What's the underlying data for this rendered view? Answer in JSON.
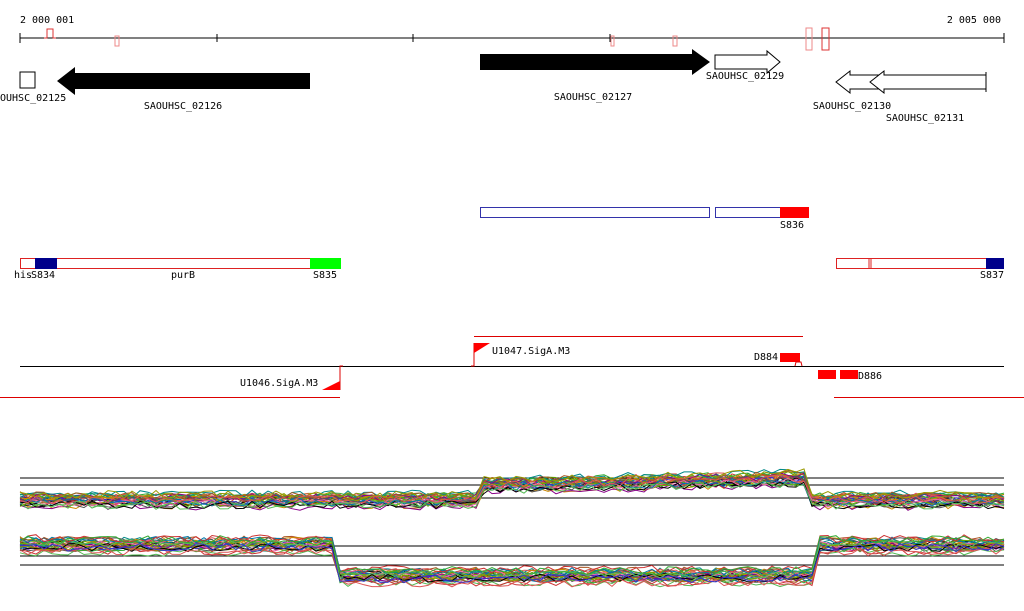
{
  "ruler": {
    "start": "2 000 001",
    "end": "2 005 000"
  },
  "genes": [
    {
      "label": "OUHSC_02125"
    },
    {
      "label": "SAOUHSC_02126"
    },
    {
      "label": "SAOUHSC_02127"
    },
    {
      "label": "SAOUHSC_02129"
    },
    {
      "label": "SAOUHSC_02130"
    },
    {
      "label": "SAOUHSC_02131"
    }
  ],
  "segments": [
    {
      "label": "S836"
    },
    {
      "label": "his"
    },
    {
      "label": "S834"
    },
    {
      "label": "purB"
    },
    {
      "label": "S835"
    },
    {
      "label": "S837"
    }
  ],
  "features": [
    {
      "label": "U1047.SigA.M3"
    },
    {
      "label": "D884"
    },
    {
      "label": "U1046.SigA.M3"
    },
    {
      "label": "D886"
    }
  ]
}
